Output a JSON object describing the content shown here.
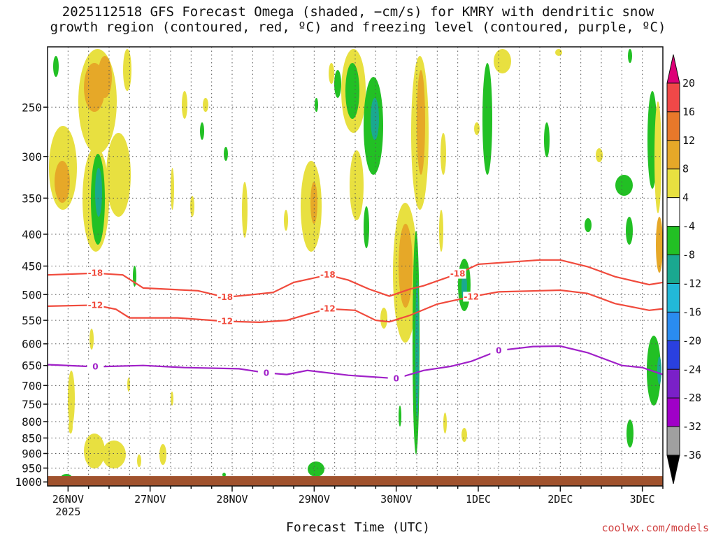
{
  "title_line1": "2025112518 GFS Forecast Omega (shaded, −cm/s) for KMRY with dendritic snow",
  "title_line2": "growth region (contoured, red, ºC) and freezing level (contoured, purple, ºC)",
  "x_title": "Forecast Time (UTC)",
  "credit": "coolwx.com/models",
  "chart_data": {
    "type": "heatmap",
    "y_axis": {
      "scale": "log-pressure",
      "ticks": [
        250,
        300,
        350,
        400,
        450,
        500,
        550,
        600,
        650,
        700,
        750,
        800,
        850,
        900,
        950,
        1000
      ],
      "range": [
        200,
        1015
      ]
    },
    "x_axis": {
      "ticks": [
        {
          "label": "26NOV",
          "sublabel": "2025",
          "hours": 6
        },
        {
          "label": "27NOV",
          "hours": 30
        },
        {
          "label": "28NOV",
          "hours": 54
        },
        {
          "label": "29NOV",
          "hours": 78
        },
        {
          "label": "30NOV",
          "hours": 102
        },
        {
          "label": "1DEC",
          "hours": 126
        },
        {
          "label": "2DEC",
          "hours": 150
        },
        {
          "label": "3DEC",
          "hours": 174
        }
      ],
      "range_hours": [
        0,
        180
      ]
    },
    "grid": true,
    "colorbar": {
      "levels": [
        20,
        16,
        12,
        8,
        4,
        -4,
        -8,
        -12,
        -16,
        -20,
        -24,
        -28,
        -32,
        -36
      ],
      "colors": [
        "#dd0077",
        "#f04848",
        "#e8782a",
        "#e6a828",
        "#e8e040",
        "#ffffff",
        "#22c024",
        "#1aa890",
        "#22b8d8",
        "#2a8cf0",
        "#2a40e0",
        "#7a20c8",
        "#a000c8",
        "#a0a0a0",
        "#000000"
      ]
    },
    "contours": [
      {
        "name": "-18",
        "color": "#f04a3c",
        "points": [
          [
            0,
            465
          ],
          [
            14,
            462
          ],
          [
            22,
            465
          ],
          [
            28,
            488
          ],
          [
            44,
            493
          ],
          [
            52,
            505
          ],
          [
            60,
            500
          ],
          [
            66,
            496
          ],
          [
            72,
            478
          ],
          [
            82,
            465
          ],
          [
            88,
            474
          ],
          [
            94,
            490
          ],
          [
            100,
            503
          ],
          [
            106,
            490
          ],
          [
            110,
            484
          ],
          [
            120,
            463
          ],
          [
            126,
            447
          ],
          [
            144,
            440
          ],
          [
            150,
            440
          ],
          [
            158,
            451
          ],
          [
            166,
            468
          ],
          [
            176,
            482
          ],
          [
            180,
            478
          ]
        ]
      },
      {
        "name": "-12",
        "color": "#f04a3c",
        "points": [
          [
            0,
            522
          ],
          [
            14,
            520
          ],
          [
            20,
            528
          ],
          [
            24,
            545
          ],
          [
            38,
            545
          ],
          [
            52,
            552
          ],
          [
            62,
            554
          ],
          [
            70,
            550
          ],
          [
            76,
            538
          ],
          [
            82,
            527
          ],
          [
            90,
            530
          ],
          [
            96,
            550
          ],
          [
            100,
            553
          ],
          [
            106,
            540
          ],
          [
            114,
            518
          ],
          [
            124,
            504
          ],
          [
            132,
            495
          ],
          [
            150,
            492
          ],
          [
            158,
            498
          ],
          [
            166,
            517
          ],
          [
            176,
            530
          ],
          [
            180,
            527
          ]
        ]
      },
      {
        "name": "0",
        "color": "#a020c8",
        "points": [
          [
            0,
            648
          ],
          [
            14,
            653
          ],
          [
            28,
            650
          ],
          [
            40,
            655
          ],
          [
            56,
            658
          ],
          [
            64,
            668
          ],
          [
            70,
            672
          ],
          [
            76,
            662
          ],
          [
            88,
            674
          ],
          [
            102,
            682
          ],
          [
            110,
            662
          ],
          [
            118,
            652
          ],
          [
            124,
            640
          ],
          [
            132,
            615
          ],
          [
            142,
            606
          ],
          [
            150,
            605
          ],
          [
            158,
            620
          ],
          [
            168,
            650
          ],
          [
            174,
            655
          ],
          [
            180,
            672
          ]
        ]
      }
    ]
  }
}
